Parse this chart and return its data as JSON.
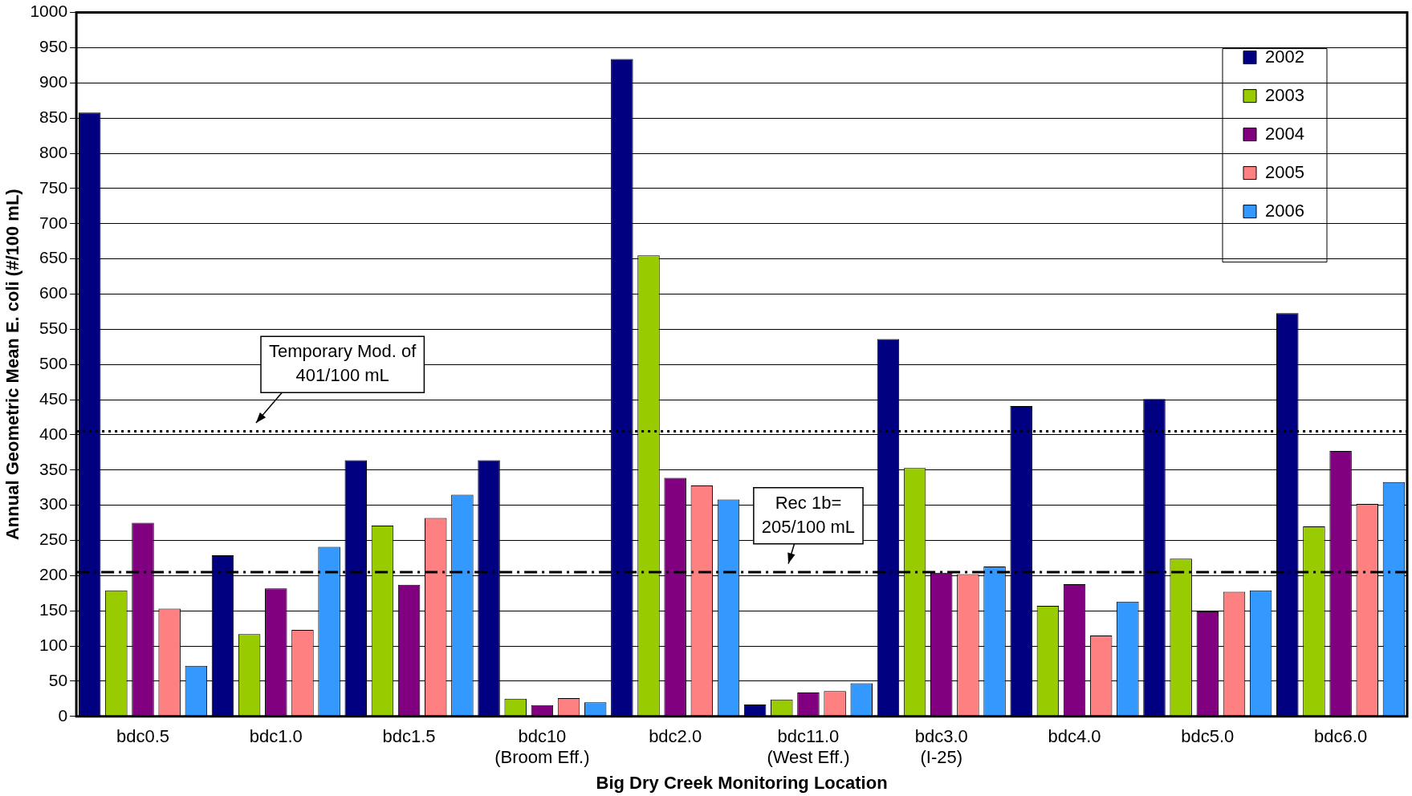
{
  "chart_data": {
    "type": "bar",
    "xlabel": "Big Dry Creek Monitoring Location",
    "ylabel": "Annual Geometric Mean E. coli (#/100 mL)",
    "categories": [
      "bdc0.5",
      "bdc1.0",
      "bdc1.5",
      "bdc10\n(Broom Eff.)",
      "bdc2.0",
      "bdc11.0\n(West Eff.)",
      "bdc3.0\n(I-25)",
      "bdc4.0",
      "bdc5.0",
      "bdc6.0"
    ],
    "series": [
      {
        "name": "2002",
        "color": "#000080",
        "values": [
          858,
          229,
          364,
          364,
          934,
          17,
          536,
          441,
          451,
          573
        ]
      },
      {
        "name": "2003",
        "color": "#99cc00",
        "values": [
          179,
          117,
          271,
          25,
          655,
          24,
          353,
          157,
          224,
          270
        ]
      },
      {
        "name": "2004",
        "color": "#800080",
        "values": [
          275,
          182,
          187,
          16,
          339,
          34,
          204,
          188,
          149,
          377
        ]
      },
      {
        "name": "2005",
        "color": "#ff8080",
        "values": [
          153,
          123,
          282,
          26,
          328,
          36,
          202,
          115,
          177,
          302
        ]
      },
      {
        "name": "2006",
        "color": "#3399ff",
        "values": [
          72,
          241,
          315,
          20,
          308,
          47,
          213,
          163,
          179,
          333
        ]
      }
    ],
    "ylim": [
      0,
      1000
    ],
    "yticks": [
      0,
      50,
      100,
      150,
      200,
      250,
      300,
      350,
      400,
      450,
      500,
      550,
      600,
      650,
      700,
      750,
      800,
      850,
      900,
      950,
      1000
    ],
    "grid": "y",
    "legend": "top right",
    "ref_lines": [
      {
        "axis": "y",
        "value": 405,
        "label": "Temporary Mod. of\n401/100 mL",
        "line_style": "dotted",
        "color": "#000000"
      },
      {
        "axis": "y",
        "value": 205,
        "label": "Rec 1b=\n205/100 mL",
        "line_style": "dashed",
        "color": "#000000"
      }
    ]
  }
}
